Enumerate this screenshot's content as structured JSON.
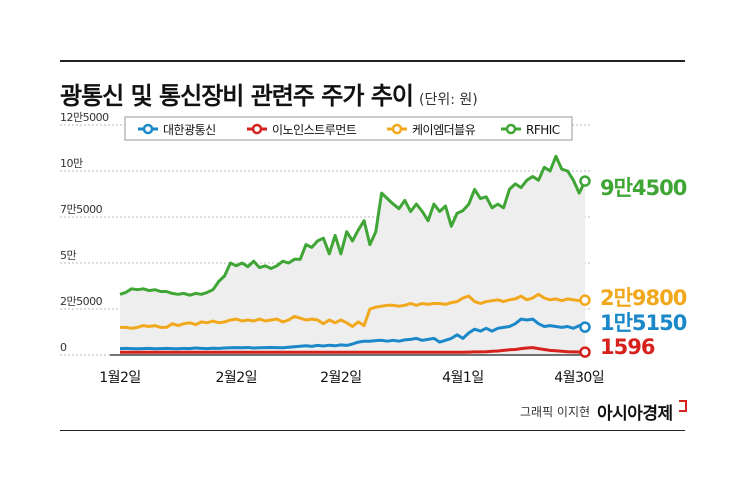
{
  "header": {
    "title": "광통신 및 통신장비 관련주 주가 추이",
    "unit": "(단위: 원)"
  },
  "footer": {
    "credit": "그래픽 이지현",
    "brand": "아시아경제"
  },
  "chart_data": {
    "type": "line",
    "y_ticks": [
      {
        "value": 0,
        "label": "0"
      },
      {
        "value": 25000,
        "label": "2만5000"
      },
      {
        "value": 50000,
        "label": "5만"
      },
      {
        "value": 75000,
        "label": "7만5000"
      },
      {
        "value": 100000,
        "label": "10만"
      },
      {
        "value": 125000,
        "label": "12만5000"
      }
    ],
    "ylim": [
      0,
      125000
    ],
    "x_ticks": [
      {
        "index": 0,
        "label": "1월2일"
      },
      {
        "index": 20,
        "label": "2월2일"
      },
      {
        "index": 38,
        "label": "2월2일"
      },
      {
        "index": 59,
        "label": "4월1일"
      },
      {
        "index": 79,
        "label": "4월30일"
      }
    ],
    "grid": true,
    "legend_position": "top",
    "series": [
      {
        "name": "RFHIC",
        "color": "#3fa535",
        "end_label": "9만4500",
        "values": [
          33000,
          34000,
          36000,
          35500,
          36000,
          35000,
          35500,
          34500,
          34500,
          33500,
          33000,
          33500,
          32500,
          33500,
          33000,
          34000,
          35500,
          40000,
          43000,
          50000,
          48500,
          50000,
          48000,
          51000,
          47500,
          48500,
          47000,
          48500,
          51000,
          50000,
          52000,
          52000,
          60000,
          58500,
          62000,
          63500,
          55000,
          65000,
          55000,
          67000,
          62000,
          68000,
          73000,
          60000,
          67000,
          88000,
          85000,
          82000,
          79500,
          84000,
          78000,
          82000,
          78000,
          73000,
          82000,
          78000,
          81000,
          70000,
          77000,
          78500,
          82000,
          90000,
          85000,
          86000,
          80000,
          82000,
          80000,
          90000,
          93000,
          91000,
          95000,
          97000,
          95000,
          102000,
          100000,
          108000,
          101000,
          100000,
          95000,
          88000,
          94500
        ]
      },
      {
        "name": "케이엠더블유",
        "color": "#f2a81d",
        "end_label": "2만9800",
        "values": [
          15000,
          15000,
          14500,
          15000,
          16000,
          15500,
          16000,
          15000,
          15000,
          17000,
          16000,
          17000,
          17500,
          16500,
          18000,
          17500,
          18500,
          17500,
          18000,
          19000,
          19500,
          18500,
          19000,
          18500,
          19500,
          18500,
          19000,
          19500,
          18000,
          19000,
          21000,
          20000,
          19000,
          19500,
          19000,
          17000,
          19000,
          17500,
          19000,
          17500,
          15500,
          18000,
          16000,
          25000,
          26000,
          26500,
          27000,
          27000,
          26500,
          27000,
          28000,
          27000,
          28000,
          27500,
          28000,
          28000,
          27500,
          28500,
          29000,
          31000,
          32000,
          29000,
          28000,
          29000,
          29500,
          30000,
          29000,
          30000,
          30500,
          32000,
          30000,
          31000,
          33000,
          31000,
          30000,
          30500,
          29500,
          30500,
          30000,
          29500,
          29800
        ]
      },
      {
        "name": "대한광통신",
        "color": "#1a88c9",
        "end_label": "1만5150",
        "values": [
          3500,
          3600,
          3500,
          3400,
          3500,
          3600,
          3400,
          3500,
          3600,
          3500,
          3400,
          3600,
          3500,
          3800,
          3600,
          3500,
          3700,
          3600,
          3800,
          3900,
          4000,
          3900,
          4100,
          3800,
          3900,
          4000,
          4100,
          4000,
          3900,
          4200,
          4500,
          4800,
          5000,
          4700,
          5200,
          4900,
          5300,
          5000,
          5500,
          5200,
          6000,
          7000,
          7500,
          7500,
          7800,
          8000,
          7500,
          8000,
          7500,
          8200,
          8500,
          9000,
          8000,
          8500,
          9000,
          7000,
          8000,
          9000,
          11000,
          9000,
          12000,
          14000,
          13000,
          14500,
          13000,
          14500,
          15000,
          15500,
          17000,
          19500,
          19000,
          19500,
          17000,
          15500,
          16000,
          15500,
          15000,
          15500,
          14500,
          16000,
          15150
        ]
      },
      {
        "name": "이노인스트루먼트",
        "color": "#d6221c",
        "end_label": "1596",
        "values": [
          1500,
          1500,
          1500,
          1500,
          1500,
          1500,
          1500,
          1500,
          1500,
          1500,
          1500,
          1500,
          1500,
          1500,
          1500,
          1500,
          1500,
          1500,
          1500,
          1500,
          1500,
          1500,
          1500,
          1500,
          1500,
          1500,
          1500,
          1500,
          1500,
          1500,
          1500,
          1500,
          1500,
          1500,
          1500,
          1500,
          1500,
          1500,
          1500,
          1500,
          1500,
          1500,
          1500,
          1500,
          1500,
          1500,
          1500,
          1500,
          1500,
          1500,
          1500,
          1500,
          1500,
          1500,
          1500,
          1500,
          1500,
          1500,
          1500,
          1500,
          1600,
          1700,
          1700,
          1800,
          2000,
          2200,
          2500,
          2800,
          3000,
          3500,
          3800,
          4000,
          3500,
          3000,
          2500,
          2300,
          2000,
          1800,
          1700,
          1650,
          1596
        ]
      }
    ]
  }
}
